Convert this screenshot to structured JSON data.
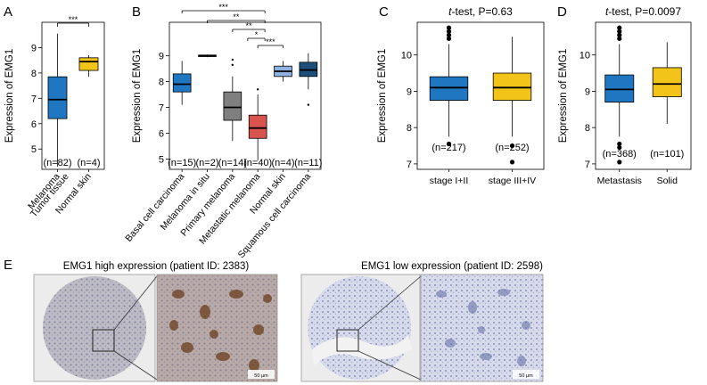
{
  "chart_data": [
    {
      "panel": "A",
      "type": "box",
      "ylabel": "Expression of EMG1",
      "ylim": [
        4.2,
        10.0
      ],
      "yticks": [
        5,
        6,
        7,
        8,
        9
      ],
      "categories": [
        "Melanoma\nTumor tissue",
        "Normal skin"
      ],
      "counts": [
        "(n=82)",
        "(n=4)"
      ],
      "colors": [
        "#1f77c1",
        "#f2c319"
      ],
      "boxes": [
        {
          "whisker_low": 4.3,
          "q1": 6.2,
          "median": 6.95,
          "q3": 7.85,
          "whisker_high": 9.55
        },
        {
          "whisker_low": 7.85,
          "q1": 8.1,
          "median": 8.45,
          "q3": 8.6,
          "whisker_high": 8.7
        }
      ],
      "annotations": [
        {
          "text": "***",
          "from": 0,
          "to": 1
        }
      ]
    },
    {
      "panel": "B",
      "type": "box",
      "ylabel": "Expression of EMG1",
      "ylim": [
        4.6,
        10.3
      ],
      "yticks": [
        5,
        6,
        7,
        8,
        9
      ],
      "categories": [
        "Basal cell carcinoma",
        "Melanoma in situ",
        "Primary melanoma",
        "Metastatic melanoma",
        "Normal skin",
        "Squamous cell carcinoma"
      ],
      "counts": [
        "(n=15)",
        "(n=2)",
        "(n=14)",
        "(n=40)",
        "(n=4)",
        "(n=11)"
      ],
      "colors": [
        "#1f77c1",
        "#1a1a1a",
        "#7f7f7f",
        "#d9534f",
        "#8fb3e0",
        "#1d4f7a"
      ],
      "boxes": [
        {
          "whisker_low": 7.1,
          "q1": 7.6,
          "median": 7.9,
          "q3": 8.3,
          "whisker_high": 8.8
        },
        {
          "whisker_low": 8.95,
          "q1": 8.97,
          "median": 9.0,
          "q3": 9.03,
          "whisker_high": 9.05
        },
        {
          "whisker_low": 5.7,
          "q1": 6.5,
          "median": 7.0,
          "q3": 7.6,
          "whisker_high": 8.2,
          "outliers": [
            8.65,
            8.85
          ]
        },
        {
          "whisker_low": 4.95,
          "q1": 5.8,
          "median": 6.2,
          "q3": 6.7,
          "whisker_high": 7.5,
          "outliers": [
            7.7
          ]
        },
        {
          "whisker_low": 8.0,
          "q1": 8.2,
          "median": 8.4,
          "q3": 8.6,
          "whisker_high": 8.8
        },
        {
          "whisker_low": 7.7,
          "q1": 8.2,
          "median": 8.45,
          "q3": 8.75,
          "whisker_high": 9.1,
          "outliers": [
            7.1
          ]
        }
      ],
      "annotations": [
        {
          "text": "***",
          "from": 0,
          "to": 3
        },
        {
          "text": "**",
          "from": 1,
          "to": 3
        },
        {
          "text": "**",
          "from": 2,
          "to": 3
        },
        {
          "text": "*",
          "from": 3,
          "to": 3
        },
        {
          "text": "***",
          "from": 3,
          "to": 4
        }
      ]
    },
    {
      "panel": "C",
      "type": "box",
      "title": "t-test, P=0.63",
      "title_italic": "t",
      "title_rest": "-test, P=0.63",
      "ylabel": "Expression of EMG1",
      "ylim": [
        6.85,
        10.9
      ],
      "yticks": [
        7,
        8,
        9,
        10
      ],
      "categories": [
        "stage I+II",
        "stage III+IV"
      ],
      "counts": [
        "(n=217)",
        "(n=252)"
      ],
      "colors": [
        "#1f77c1",
        "#f2c319"
      ],
      "boxes": [
        {
          "whisker_low": 7.75,
          "q1": 8.75,
          "median": 9.1,
          "q3": 9.4,
          "whisker_high": 10.3,
          "outliers": [
            7.55,
            10.45,
            10.55,
            10.65,
            10.75
          ]
        },
        {
          "whisker_low": 7.75,
          "q1": 8.75,
          "median": 9.1,
          "q3": 9.5,
          "whisker_high": 10.5,
          "outliers": [
            7.5,
            7.05
          ]
        }
      ]
    },
    {
      "panel": "D",
      "type": "box",
      "title": "t-test, P=0.0097",
      "title_italic": "t",
      "title_rest": "-test, P=0.0097",
      "ylabel": "Expression of EMG1",
      "ylim": [
        6.85,
        10.9
      ],
      "yticks": [
        7,
        8,
        9,
        10
      ],
      "categories": [
        "Metastasis",
        "Solid"
      ],
      "counts": [
        "(n=368)",
        "(n=101)"
      ],
      "colors": [
        "#1f77c1",
        "#f2c319"
      ],
      "boxes": [
        {
          "whisker_low": 7.75,
          "q1": 8.7,
          "median": 9.05,
          "q3": 9.45,
          "whisker_high": 10.3,
          "outliers": [
            7.55,
            7.45,
            7.05,
            10.45,
            10.55,
            10.65,
            10.75
          ]
        },
        {
          "whisker_low": 8.1,
          "q1": 8.85,
          "median": 9.2,
          "q3": 9.65,
          "whisker_high": 10.35
        }
      ]
    }
  ],
  "panel_e": {
    "label": "E",
    "high_caption": "EMG1 high expression (patient ID: 2383)",
    "low_caption": "EMG1 low expression (patient ID: 2598)",
    "scale_text": "50 μm"
  }
}
